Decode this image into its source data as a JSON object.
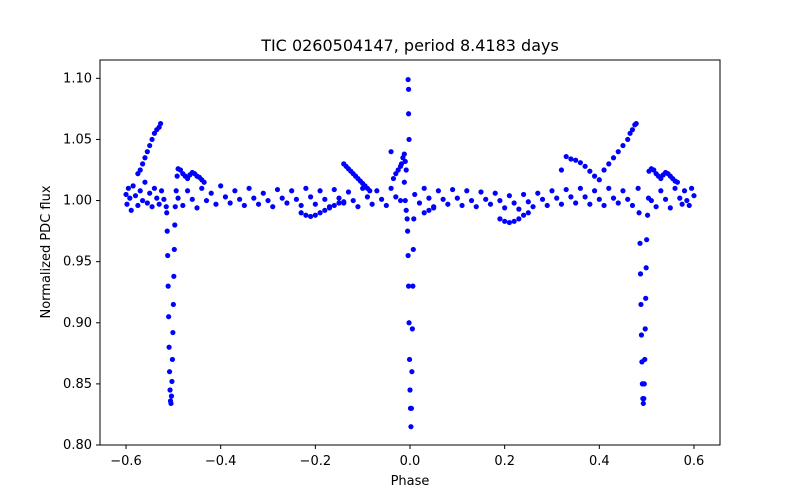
{
  "chart_data": {
    "type": "scatter",
    "title": "TIC 0260504147, period 8.4183 days",
    "xlabel": "Phase",
    "ylabel": "Normalized PDC flux",
    "xlim": [
      -0.655,
      0.655
    ],
    "ylim": [
      0.8,
      1.115
    ],
    "xticks": [
      -0.6,
      -0.4,
      -0.2,
      0.0,
      0.2,
      0.4,
      0.6
    ],
    "xtick_labels": [
      "−0.6",
      "−0.4",
      "−0.2",
      "0.0",
      "0.2",
      "0.4",
      "0.6"
    ],
    "yticks": [
      0.8,
      0.85,
      0.9,
      0.95,
      1.0,
      1.05,
      1.1
    ],
    "ytick_labels": [
      "0.80",
      "0.85",
      "0.90",
      "0.95",
      "1.00",
      "1.05",
      "1.10"
    ],
    "grid": false,
    "marker_color": "#0000ff",
    "series": [
      {
        "values": [
          [
            -0.6,
            1.005
          ],
          [
            -0.598,
            0.997
          ],
          [
            -0.595,
            1.01
          ],
          [
            -0.592,
            1.002
          ],
          [
            -0.589,
            0.992
          ],
          [
            -0.585,
            1.012
          ],
          [
            -0.58,
            1.004
          ],
          [
            -0.575,
            0.996
          ],
          [
            -0.57,
            1.008
          ],
          [
            -0.565,
            1.0
          ],
          [
            -0.56,
            1.015
          ],
          [
            -0.555,
            0.998
          ],
          [
            -0.55,
            1.006
          ],
          [
            -0.545,
            0.995
          ],
          [
            -0.54,
            1.01
          ],
          [
            -0.535,
            1.002
          ],
          [
            -0.53,
            0.997
          ],
          [
            -0.525,
            1.008
          ],
          [
            -0.52,
            1.001
          ],
          [
            -0.515,
            0.995
          ],
          [
            -0.575,
            1.022
          ],
          [
            -0.57,
            1.025
          ],
          [
            -0.565,
            1.03
          ],
          [
            -0.56,
            1.035
          ],
          [
            -0.555,
            1.04
          ],
          [
            -0.55,
            1.045
          ],
          [
            -0.545,
            1.05
          ],
          [
            -0.54,
            1.055
          ],
          [
            -0.535,
            1.058
          ],
          [
            -0.53,
            1.06
          ],
          [
            -0.527,
            1.063
          ],
          [
            -0.514,
            0.99
          ],
          [
            -0.513,
            0.975
          ],
          [
            -0.512,
            0.955
          ],
          [
            -0.511,
            0.93
          ],
          [
            -0.51,
            0.905
          ],
          [
            -0.509,
            0.88
          ],
          [
            -0.508,
            0.86
          ],
          [
            -0.507,
            0.845
          ],
          [
            -0.506,
            0.836
          ],
          [
            -0.505,
            0.834
          ],
          [
            -0.504,
            0.84
          ],
          [
            -0.503,
            0.852
          ],
          [
            -0.502,
            0.87
          ],
          [
            -0.501,
            0.892
          ],
          [
            -0.5,
            0.915
          ],
          [
            -0.499,
            0.938
          ],
          [
            -0.498,
            0.96
          ],
          [
            -0.497,
            0.98
          ],
          [
            -0.496,
            0.995
          ],
          [
            -0.494,
            1.008
          ],
          [
            -0.492,
            1.02
          ],
          [
            -0.49,
            1.026
          ],
          [
            -0.485,
            1.025
          ],
          [
            -0.48,
            1.022
          ],
          [
            -0.475,
            1.02
          ],
          [
            -0.47,
            1.018
          ],
          [
            -0.465,
            1.021
          ],
          [
            -0.46,
            1.023
          ],
          [
            -0.455,
            1.022
          ],
          [
            -0.45,
            1.02
          ],
          [
            -0.445,
            1.019
          ],
          [
            -0.44,
            1.017
          ],
          [
            -0.435,
            1.015
          ],
          [
            -0.49,
            1.002
          ],
          [
            -0.48,
            0.996
          ],
          [
            -0.47,
            1.008
          ],
          [
            -0.46,
            1.001
          ],
          [
            -0.45,
            0.994
          ],
          [
            -0.44,
            1.01
          ],
          [
            -0.43,
            1.0
          ],
          [
            -0.42,
            1.006
          ],
          [
            -0.41,
            0.997
          ],
          [
            -0.4,
            1.012
          ],
          [
            -0.39,
            1.003
          ],
          [
            -0.38,
            0.998
          ],
          [
            -0.37,
            1.008
          ],
          [
            -0.36,
            1.001
          ],
          [
            -0.35,
            0.996
          ],
          [
            -0.34,
            1.01
          ],
          [
            -0.33,
            1.002
          ],
          [
            -0.32,
            0.997
          ],
          [
            -0.31,
            1.006
          ],
          [
            -0.3,
            1.0
          ],
          [
            -0.29,
            0.995
          ],
          [
            -0.28,
            1.009
          ],
          [
            -0.27,
            1.002
          ],
          [
            -0.26,
            0.998
          ],
          [
            -0.25,
            1.008
          ],
          [
            -0.24,
            1.001
          ],
          [
            -0.23,
            0.996
          ],
          [
            -0.22,
            1.01
          ],
          [
            -0.21,
            1.003
          ],
          [
            -0.2,
            0.997
          ],
          [
            -0.19,
            1.008
          ],
          [
            -0.18,
            1.001
          ],
          [
            -0.17,
            0.995
          ],
          [
            -0.16,
            1.009
          ],
          [
            -0.15,
            1.002
          ],
          [
            -0.14,
            0.998
          ],
          [
            -0.13,
            1.007
          ],
          [
            -0.12,
            1.0
          ],
          [
            -0.11,
            0.995
          ],
          [
            -0.1,
            1.01
          ],
          [
            -0.09,
            1.003
          ],
          [
            -0.08,
            0.997
          ],
          [
            -0.07,
            1.008
          ],
          [
            -0.06,
            1.001
          ],
          [
            -0.05,
            0.996
          ],
          [
            -0.04,
            1.01
          ],
          [
            -0.03,
            1.003
          ],
          [
            -0.02,
            1.0
          ],
          [
            -0.23,
            0.99
          ],
          [
            -0.22,
            0.988
          ],
          [
            -0.21,
            0.987
          ],
          [
            -0.2,
            0.988
          ],
          [
            -0.19,
            0.99
          ],
          [
            -0.18,
            0.992
          ],
          [
            -0.17,
            0.994
          ],
          [
            -0.16,
            0.996
          ],
          [
            -0.15,
            0.998
          ],
          [
            -0.14,
            0.999
          ],
          [
            -0.14,
            1.03
          ],
          [
            -0.135,
            1.028
          ],
          [
            -0.13,
            1.026
          ],
          [
            -0.125,
            1.024
          ],
          [
            -0.12,
            1.022
          ],
          [
            -0.115,
            1.02
          ],
          [
            -0.11,
            1.018
          ],
          [
            -0.105,
            1.016
          ],
          [
            -0.1,
            1.014
          ],
          [
            -0.095,
            1.012
          ],
          [
            -0.09,
            1.01
          ],
          [
            -0.085,
            1.008
          ],
          [
            -0.035,
            1.018
          ],
          [
            -0.03,
            1.022
          ],
          [
            -0.025,
            1.025
          ],
          [
            -0.02,
            1.028
          ],
          [
            -0.018,
            1.03
          ],
          [
            -0.015,
            1.035
          ],
          [
            -0.04,
            1.04
          ],
          [
            -0.012,
            1.038
          ],
          [
            -0.01,
            1.032
          ],
          [
            -0.008,
            1.025
          ],
          [
            -0.012,
            1.015
          ],
          [
            -0.01,
            1.0
          ],
          [
            -0.008,
            0.992
          ],
          [
            -0.006,
            0.985
          ],
          [
            -0.005,
            0.975
          ],
          [
            -0.004,
            0.955
          ],
          [
            -0.003,
            0.93
          ],
          [
            -0.002,
            0.9
          ],
          [
            -0.001,
            0.87
          ],
          [
            0.0,
            0.845
          ],
          [
            0.001,
            0.83
          ],
          [
            0.002,
            0.815
          ],
          [
            0.003,
            0.83
          ],
          [
            0.004,
            0.86
          ],
          [
            0.005,
            0.895
          ],
          [
            0.006,
            0.93
          ],
          [
            0.007,
            0.96
          ],
          [
            0.008,
            0.985
          ],
          [
            -0.004,
            1.099
          ],
          [
            -0.003,
            1.091
          ],
          [
            -0.003,
            1.071
          ],
          [
            -0.002,
            1.05
          ],
          [
            0.01,
            1.005
          ],
          [
            0.02,
            0.998
          ],
          [
            0.03,
            1.01
          ],
          [
            0.04,
            1.002
          ],
          [
            0.05,
            0.995
          ],
          [
            0.06,
            1.008
          ],
          [
            0.07,
            1.001
          ],
          [
            0.08,
            0.997
          ],
          [
            0.09,
            1.009
          ],
          [
            0.1,
            1.002
          ],
          [
            0.11,
            0.996
          ],
          [
            0.12,
            1.008
          ],
          [
            0.13,
            1.0
          ],
          [
            0.14,
            0.995
          ],
          [
            0.15,
            1.007
          ],
          [
            0.16,
            1.001
          ],
          [
            0.17,
            0.997
          ],
          [
            0.18,
            1.006
          ],
          [
            0.19,
            1.0
          ],
          [
            0.2,
            0.994
          ],
          [
            0.21,
            1.004
          ],
          [
            0.22,
            0.998
          ],
          [
            0.23,
            0.993
          ],
          [
            0.24,
            1.005
          ],
          [
            0.25,
            0.999
          ],
          [
            0.26,
            0.995
          ],
          [
            0.27,
            1.006
          ],
          [
            0.28,
            1.001
          ],
          [
            0.29,
            0.996
          ],
          [
            0.3,
            1.008
          ],
          [
            0.31,
            1.002
          ],
          [
            0.32,
            0.997
          ],
          [
            0.33,
            1.009
          ],
          [
            0.34,
            1.003
          ],
          [
            0.35,
            0.998
          ],
          [
            0.36,
            1.01
          ],
          [
            0.37,
            1.003
          ],
          [
            0.38,
            0.997
          ],
          [
            0.39,
            1.008
          ],
          [
            0.4,
            1.001
          ],
          [
            0.41,
            0.996
          ],
          [
            0.42,
            1.01
          ],
          [
            0.43,
            1.002
          ],
          [
            0.44,
            0.998
          ],
          [
            0.45,
            1.008
          ],
          [
            0.46,
            1.001
          ],
          [
            0.47,
            0.996
          ],
          [
            0.03,
            0.99
          ],
          [
            0.04,
            0.992
          ],
          [
            0.05,
            0.994
          ],
          [
            0.19,
            0.985
          ],
          [
            0.2,
            0.983
          ],
          [
            0.21,
            0.982
          ],
          [
            0.22,
            0.983
          ],
          [
            0.23,
            0.985
          ],
          [
            0.24,
            0.988
          ],
          [
            0.25,
            0.99
          ],
          [
            0.32,
            1.025
          ],
          [
            0.33,
            1.036
          ],
          [
            0.34,
            1.034
          ],
          [
            0.35,
            1.033
          ],
          [
            0.36,
            1.031
          ],
          [
            0.37,
            1.028
          ],
          [
            0.38,
            1.024
          ],
          [
            0.39,
            1.02
          ],
          [
            0.4,
            1.017
          ],
          [
            0.41,
            1.025
          ],
          [
            0.42,
            1.03
          ],
          [
            0.43,
            1.035
          ],
          [
            0.44,
            1.04
          ],
          [
            0.45,
            1.045
          ],
          [
            0.46,
            1.05
          ],
          [
            0.465,
            1.055
          ],
          [
            0.47,
            1.058
          ],
          [
            0.475,
            1.062
          ],
          [
            0.478,
            1.063
          ],
          [
            0.482,
            1.01
          ],
          [
            0.484,
            0.99
          ],
          [
            0.486,
            0.965
          ],
          [
            0.487,
            0.94
          ],
          [
            0.488,
            0.915
          ],
          [
            0.489,
            0.89
          ],
          [
            0.49,
            0.868
          ],
          [
            0.491,
            0.85
          ],
          [
            0.492,
            0.838
          ],
          [
            0.493,
            0.834
          ],
          [
            0.494,
            0.838
          ],
          [
            0.495,
            0.85
          ],
          [
            0.496,
            0.87
          ],
          [
            0.497,
            0.895
          ],
          [
            0.498,
            0.92
          ],
          [
            0.499,
            0.945
          ],
          [
            0.5,
            0.968
          ],
          [
            0.502,
            0.988
          ],
          [
            0.504,
            1.002
          ],
          [
            0.505,
            1.024
          ],
          [
            0.51,
            1.026
          ],
          [
            0.515,
            1.025
          ],
          [
            0.52,
            1.022
          ],
          [
            0.525,
            1.02
          ],
          [
            0.53,
            1.018
          ],
          [
            0.535,
            1.021
          ],
          [
            0.54,
            1.023
          ],
          [
            0.545,
            1.022
          ],
          [
            0.55,
            1.02
          ],
          [
            0.555,
            1.018
          ],
          [
            0.56,
            1.016
          ],
          [
            0.565,
            1.015
          ],
          [
            0.51,
            1.0
          ],
          [
            0.52,
            0.995
          ],
          [
            0.53,
            1.008
          ],
          [
            0.54,
            1.001
          ],
          [
            0.55,
            0.994
          ],
          [
            0.56,
            1.01
          ],
          [
            0.57,
            1.002
          ],
          [
            0.575,
            0.997
          ],
          [
            0.58,
            1.008
          ],
          [
            0.585,
            1.0
          ],
          [
            0.59,
            0.996
          ],
          [
            0.595,
            1.01
          ],
          [
            0.6,
            1.004
          ]
        ]
      }
    ]
  }
}
